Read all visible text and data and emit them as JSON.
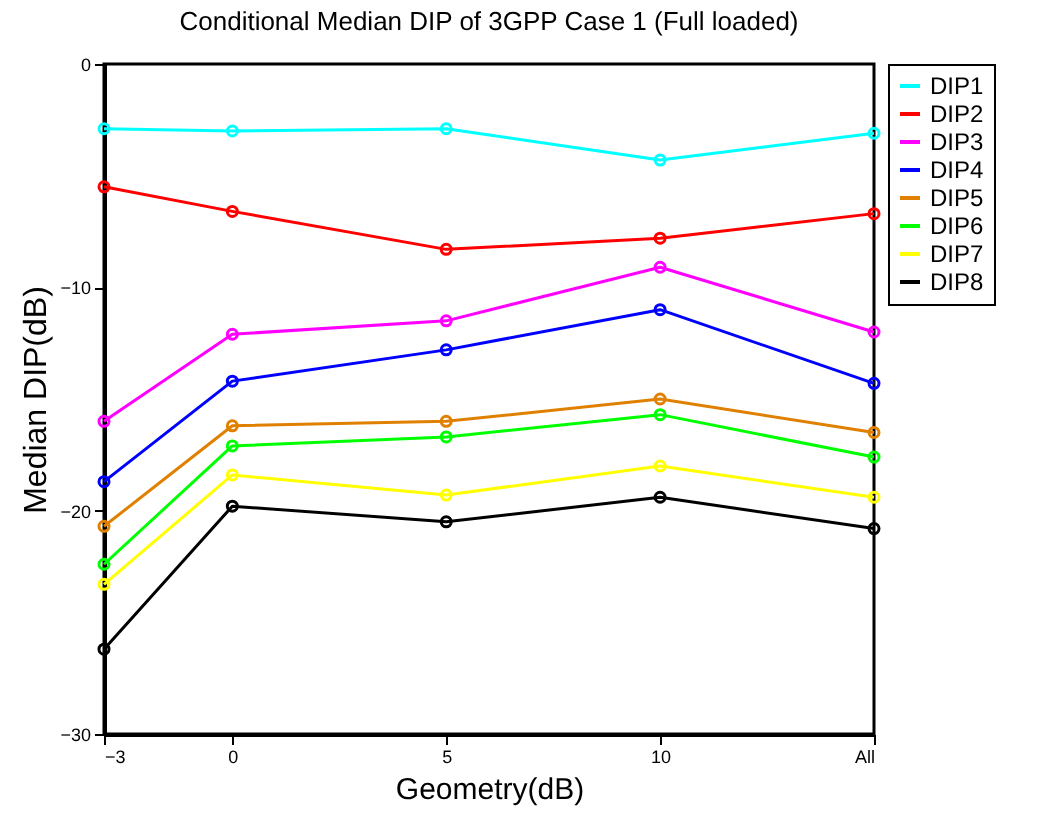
{
  "chart_data": {
    "type": "line",
    "title": "Conditional Median DIP  of 3GPP Case 1 (Full loaded)",
    "xlabel": "Geometry(dB)",
    "ylabel": "Median DIP(dB)",
    "x": [
      -3,
      0,
      5,
      10,
      15
    ],
    "xlim": [
      -3,
      15
    ],
    "xticks": [
      -3,
      0,
      5,
      10,
      {
        "value": 15,
        "label": "All"
      }
    ],
    "ylim": [
      -30,
      0
    ],
    "yticks": [
      -30,
      -20,
      -10,
      0
    ],
    "grid": false,
    "legend": "top right",
    "marker": "circle",
    "line_style": "solid",
    "series": [
      {
        "name": "DIP1",
        "color": "#00ffff",
        "values": [
          -2.9,
          -3.0,
          -2.9,
          -4.3,
          -3.1
        ]
      },
      {
        "name": "DIP2",
        "color": "#ff0000",
        "values": [
          -5.5,
          -6.6,
          -8.3,
          -7.8,
          -6.7
        ]
      },
      {
        "name": "DIP3",
        "color": "#ff00ff",
        "values": [
          -16.0,
          -12.1,
          -11.5,
          -9.1,
          -12.0
        ]
      },
      {
        "name": "DIP4",
        "color": "#0000ff",
        "values": [
          -18.7,
          -14.2,
          -12.8,
          -11.0,
          -14.3
        ]
      },
      {
        "name": "DIP5",
        "color": "#e08000",
        "values": [
          -20.7,
          -16.2,
          -16.0,
          -15.0,
          -16.5
        ]
      },
      {
        "name": "DIP6",
        "color": "#00ff00",
        "values": [
          -22.4,
          -17.1,
          -16.7,
          -15.7,
          -17.6
        ]
      },
      {
        "name": "DIP7",
        "color": "#ffff00",
        "values": [
          -23.3,
          -18.4,
          -19.3,
          -18.0,
          -19.4
        ]
      },
      {
        "name": "DIP8",
        "color": "#000000",
        "values": [
          -26.2,
          -19.8,
          -20.5,
          -19.4,
          -20.8
        ]
      }
    ]
  }
}
